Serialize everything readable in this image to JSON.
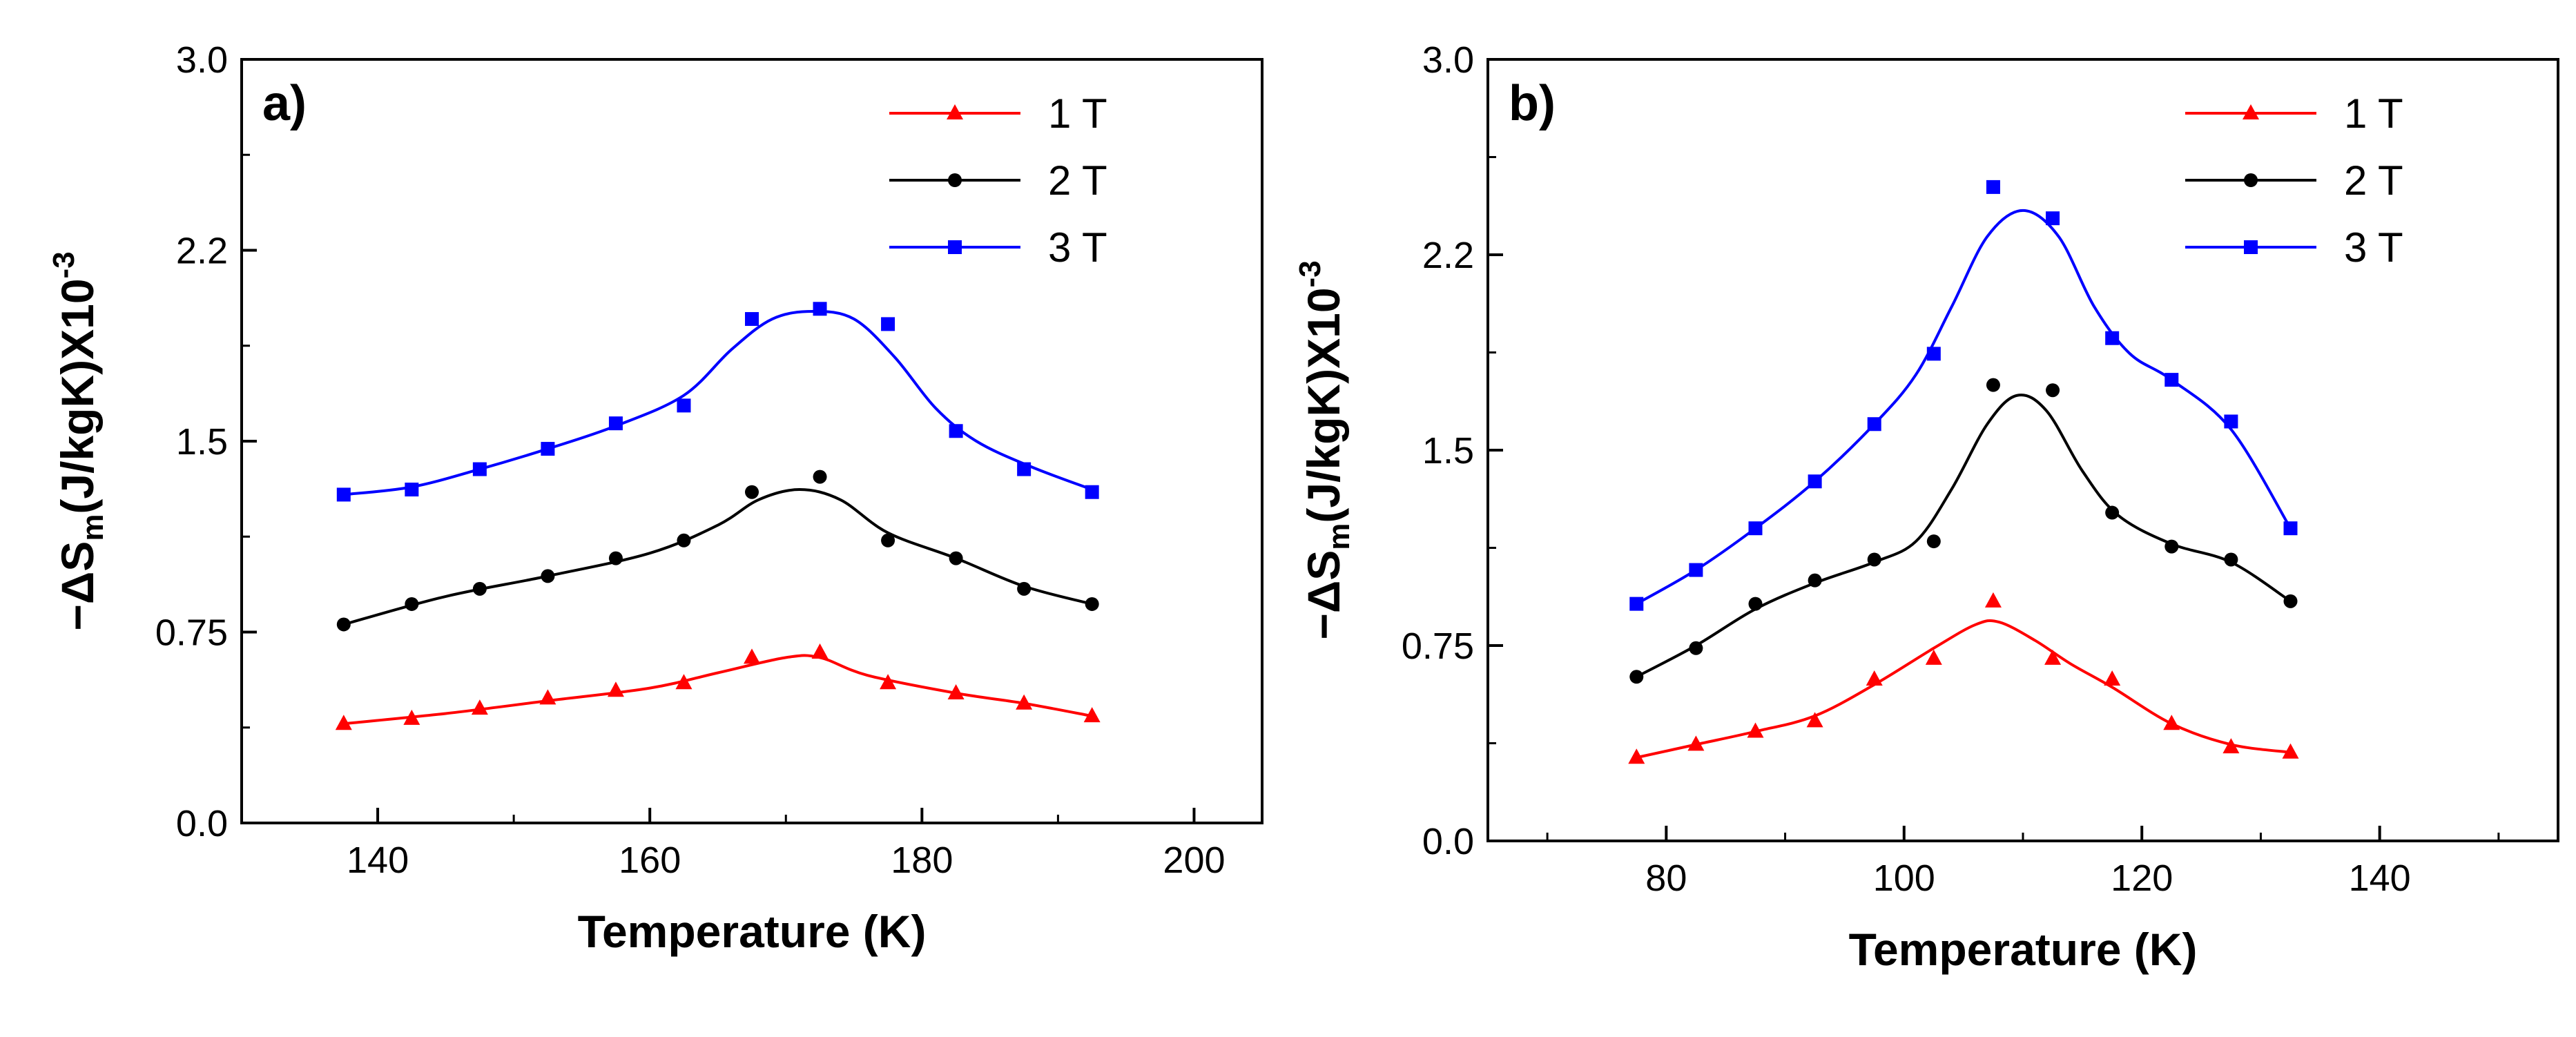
{
  "chart_data": [
    {
      "type": "line",
      "panel_label": "a)",
      "xlabel": "Temperature (K)",
      "ylabel": {
        "prefix": "−ΔS",
        "sub": "m",
        "mid": "(J/kgK)X10",
        "sup": "-3"
      },
      "xlim": [
        130,
        205
      ],
      "ylim": [
        0,
        3.0
      ],
      "xticks": [
        140,
        160,
        180,
        200
      ],
      "xtick_labels": [
        "140",
        "160",
        "180",
        "200"
      ],
      "yticks": [
        0,
        0.75,
        1.5,
        2.25,
        3.0
      ],
      "ytick_labels": [
        "0.0",
        "0.75",
        "1.5",
        "2.2",
        "3.0"
      ],
      "legend_position": "top-right",
      "x": [
        137.5,
        142.5,
        147.5,
        152.5,
        157.5,
        162.5,
        167.5,
        172.5,
        177.5,
        182.5,
        187.5,
        192.5
      ],
      "series": [
        {
          "name": "1 T",
          "color": "#ff0000",
          "marker": "triangle",
          "values": [
            0.39,
            0.41,
            0.45,
            0.49,
            0.52,
            0.55,
            0.65,
            0.67,
            0.55,
            0.51,
            0.47,
            0.42
          ],
          "fit": [
            [
              137.5,
              0.39
            ],
            [
              145,
              0.43
            ],
            [
              152.5,
              0.48
            ],
            [
              160,
              0.53
            ],
            [
              165,
              0.59
            ],
            [
              170,
              0.65
            ],
            [
              172.5,
              0.65
            ],
            [
              176,
              0.58
            ],
            [
              182.5,
              0.51
            ],
            [
              187.5,
              0.47
            ],
            [
              192.5,
              0.42
            ]
          ]
        },
        {
          "name": "2 T",
          "color": "#000000",
          "marker": "circle",
          "values": [
            0.78,
            0.86,
            0.92,
            0.97,
            1.04,
            1.11,
            1.3,
            1.36,
            1.11,
            1.04,
            0.92,
            0.86
          ],
          "fit": [
            [
              137.5,
              0.78
            ],
            [
              145,
              0.89
            ],
            [
              152.5,
              0.97
            ],
            [
              160,
              1.06
            ],
            [
              165,
              1.17
            ],
            [
              168,
              1.27
            ],
            [
              171,
              1.31
            ],
            [
              174,
              1.27
            ],
            [
              177.5,
              1.14
            ],
            [
              182.5,
              1.04
            ],
            [
              187.5,
              0.93
            ],
            [
              192.5,
              0.86
            ]
          ]
        },
        {
          "name": "3 T",
          "color": "#0000ff",
          "marker": "square",
          "values": [
            1.29,
            1.31,
            1.39,
            1.47,
            1.57,
            1.64,
            1.98,
            2.02,
            1.96,
            1.54,
            1.39,
            1.3
          ],
          "fit": [
            [
              137.5,
              1.29
            ],
            [
              142.5,
              1.32
            ],
            [
              147.5,
              1.39
            ],
            [
              152.5,
              1.47
            ],
            [
              157.5,
              1.56
            ],
            [
              162.5,
              1.68
            ],
            [
              166,
              1.86
            ],
            [
              169,
              1.98
            ],
            [
              172,
              2.01
            ],
            [
              175,
              1.98
            ],
            [
              178,
              1.83
            ],
            [
              181,
              1.63
            ],
            [
              184,
              1.5
            ],
            [
              188,
              1.4
            ],
            [
              192.5,
              1.31
            ]
          ]
        }
      ]
    },
    {
      "type": "line",
      "panel_label": "b)",
      "xlabel": "Temperature (K)",
      "ylabel": {
        "prefix": "−ΔS",
        "sub": "m",
        "mid": "(J/kgK)X10",
        "sup": "-3"
      },
      "xlim": [
        65,
        155
      ],
      "ylim": [
        0,
        3.0
      ],
      "xticks": [
        80,
        100,
        120,
        140
      ],
      "xtick_labels": [
        "80",
        "100",
        "120",
        "140"
      ],
      "yticks": [
        0,
        0.75,
        1.5,
        2.25,
        3.0
      ],
      "ytick_labels": [
        "0.0",
        "0.75",
        "1.5",
        "2.2",
        "3.0"
      ],
      "legend_position": "top-right",
      "x": [
        77.5,
        82.5,
        87.5,
        92.5,
        97.5,
        102.5,
        107.5,
        112.5,
        117.5,
        122.5,
        127.5,
        132.5
      ],
      "series": [
        {
          "name": "1 T",
          "color": "#ff0000",
          "marker": "triangle",
          "values": [
            0.32,
            0.37,
            0.42,
            0.46,
            0.62,
            0.7,
            0.92,
            0.7,
            0.62,
            0.45,
            0.36,
            0.34
          ],
          "fit": [
            [
              77.5,
              0.32
            ],
            [
              82.5,
              0.37
            ],
            [
              87.5,
              0.42
            ],
            [
              92.5,
              0.48
            ],
            [
              97.5,
              0.6
            ],
            [
              102.5,
              0.74
            ],
            [
              106,
              0.83
            ],
            [
              108,
              0.84
            ],
            [
              111,
              0.77
            ],
            [
              114,
              0.68
            ],
            [
              117.5,
              0.59
            ],
            [
              122.5,
              0.45
            ],
            [
              127.5,
              0.37
            ],
            [
              132.5,
              0.34
            ]
          ]
        },
        {
          "name": "2 T",
          "color": "#000000",
          "marker": "circle",
          "values": [
            0.63,
            0.74,
            0.91,
            1.0,
            1.08,
            1.15,
            1.75,
            1.73,
            1.26,
            1.13,
            1.08,
            0.92
          ],
          "fit": [
            [
              77.5,
              0.63
            ],
            [
              82.5,
              0.75
            ],
            [
              87.5,
              0.89
            ],
            [
              92.5,
              0.99
            ],
            [
              97.5,
              1.07
            ],
            [
              101,
              1.15
            ],
            [
              104,
              1.35
            ],
            [
              107,
              1.6
            ],
            [
              109.5,
              1.71
            ],
            [
              112,
              1.65
            ],
            [
              115,
              1.42
            ],
            [
              118,
              1.25
            ],
            [
              122.5,
              1.14
            ],
            [
              127.5,
              1.07
            ],
            [
              132.5,
              0.92
            ]
          ]
        },
        {
          "name": "3 T",
          "color": "#0000ff",
          "marker": "square",
          "values": [
            0.91,
            1.04,
            1.2,
            1.38,
            1.6,
            1.87,
            2.51,
            2.39,
            1.93,
            1.77,
            1.61,
            1.2
          ],
          "fit": [
            [
              77.5,
              0.91
            ],
            [
              82.5,
              1.04
            ],
            [
              87.5,
              1.2
            ],
            [
              92.5,
              1.38
            ],
            [
              97.5,
              1.6
            ],
            [
              101,
              1.79
            ],
            [
              104,
              2.05
            ],
            [
              107,
              2.32
            ],
            [
              110,
              2.42
            ],
            [
              113,
              2.32
            ],
            [
              116,
              2.05
            ],
            [
              119,
              1.87
            ],
            [
              122.5,
              1.77
            ],
            [
              127.5,
              1.58
            ],
            [
              132.5,
              1.2
            ]
          ]
        }
      ]
    }
  ]
}
